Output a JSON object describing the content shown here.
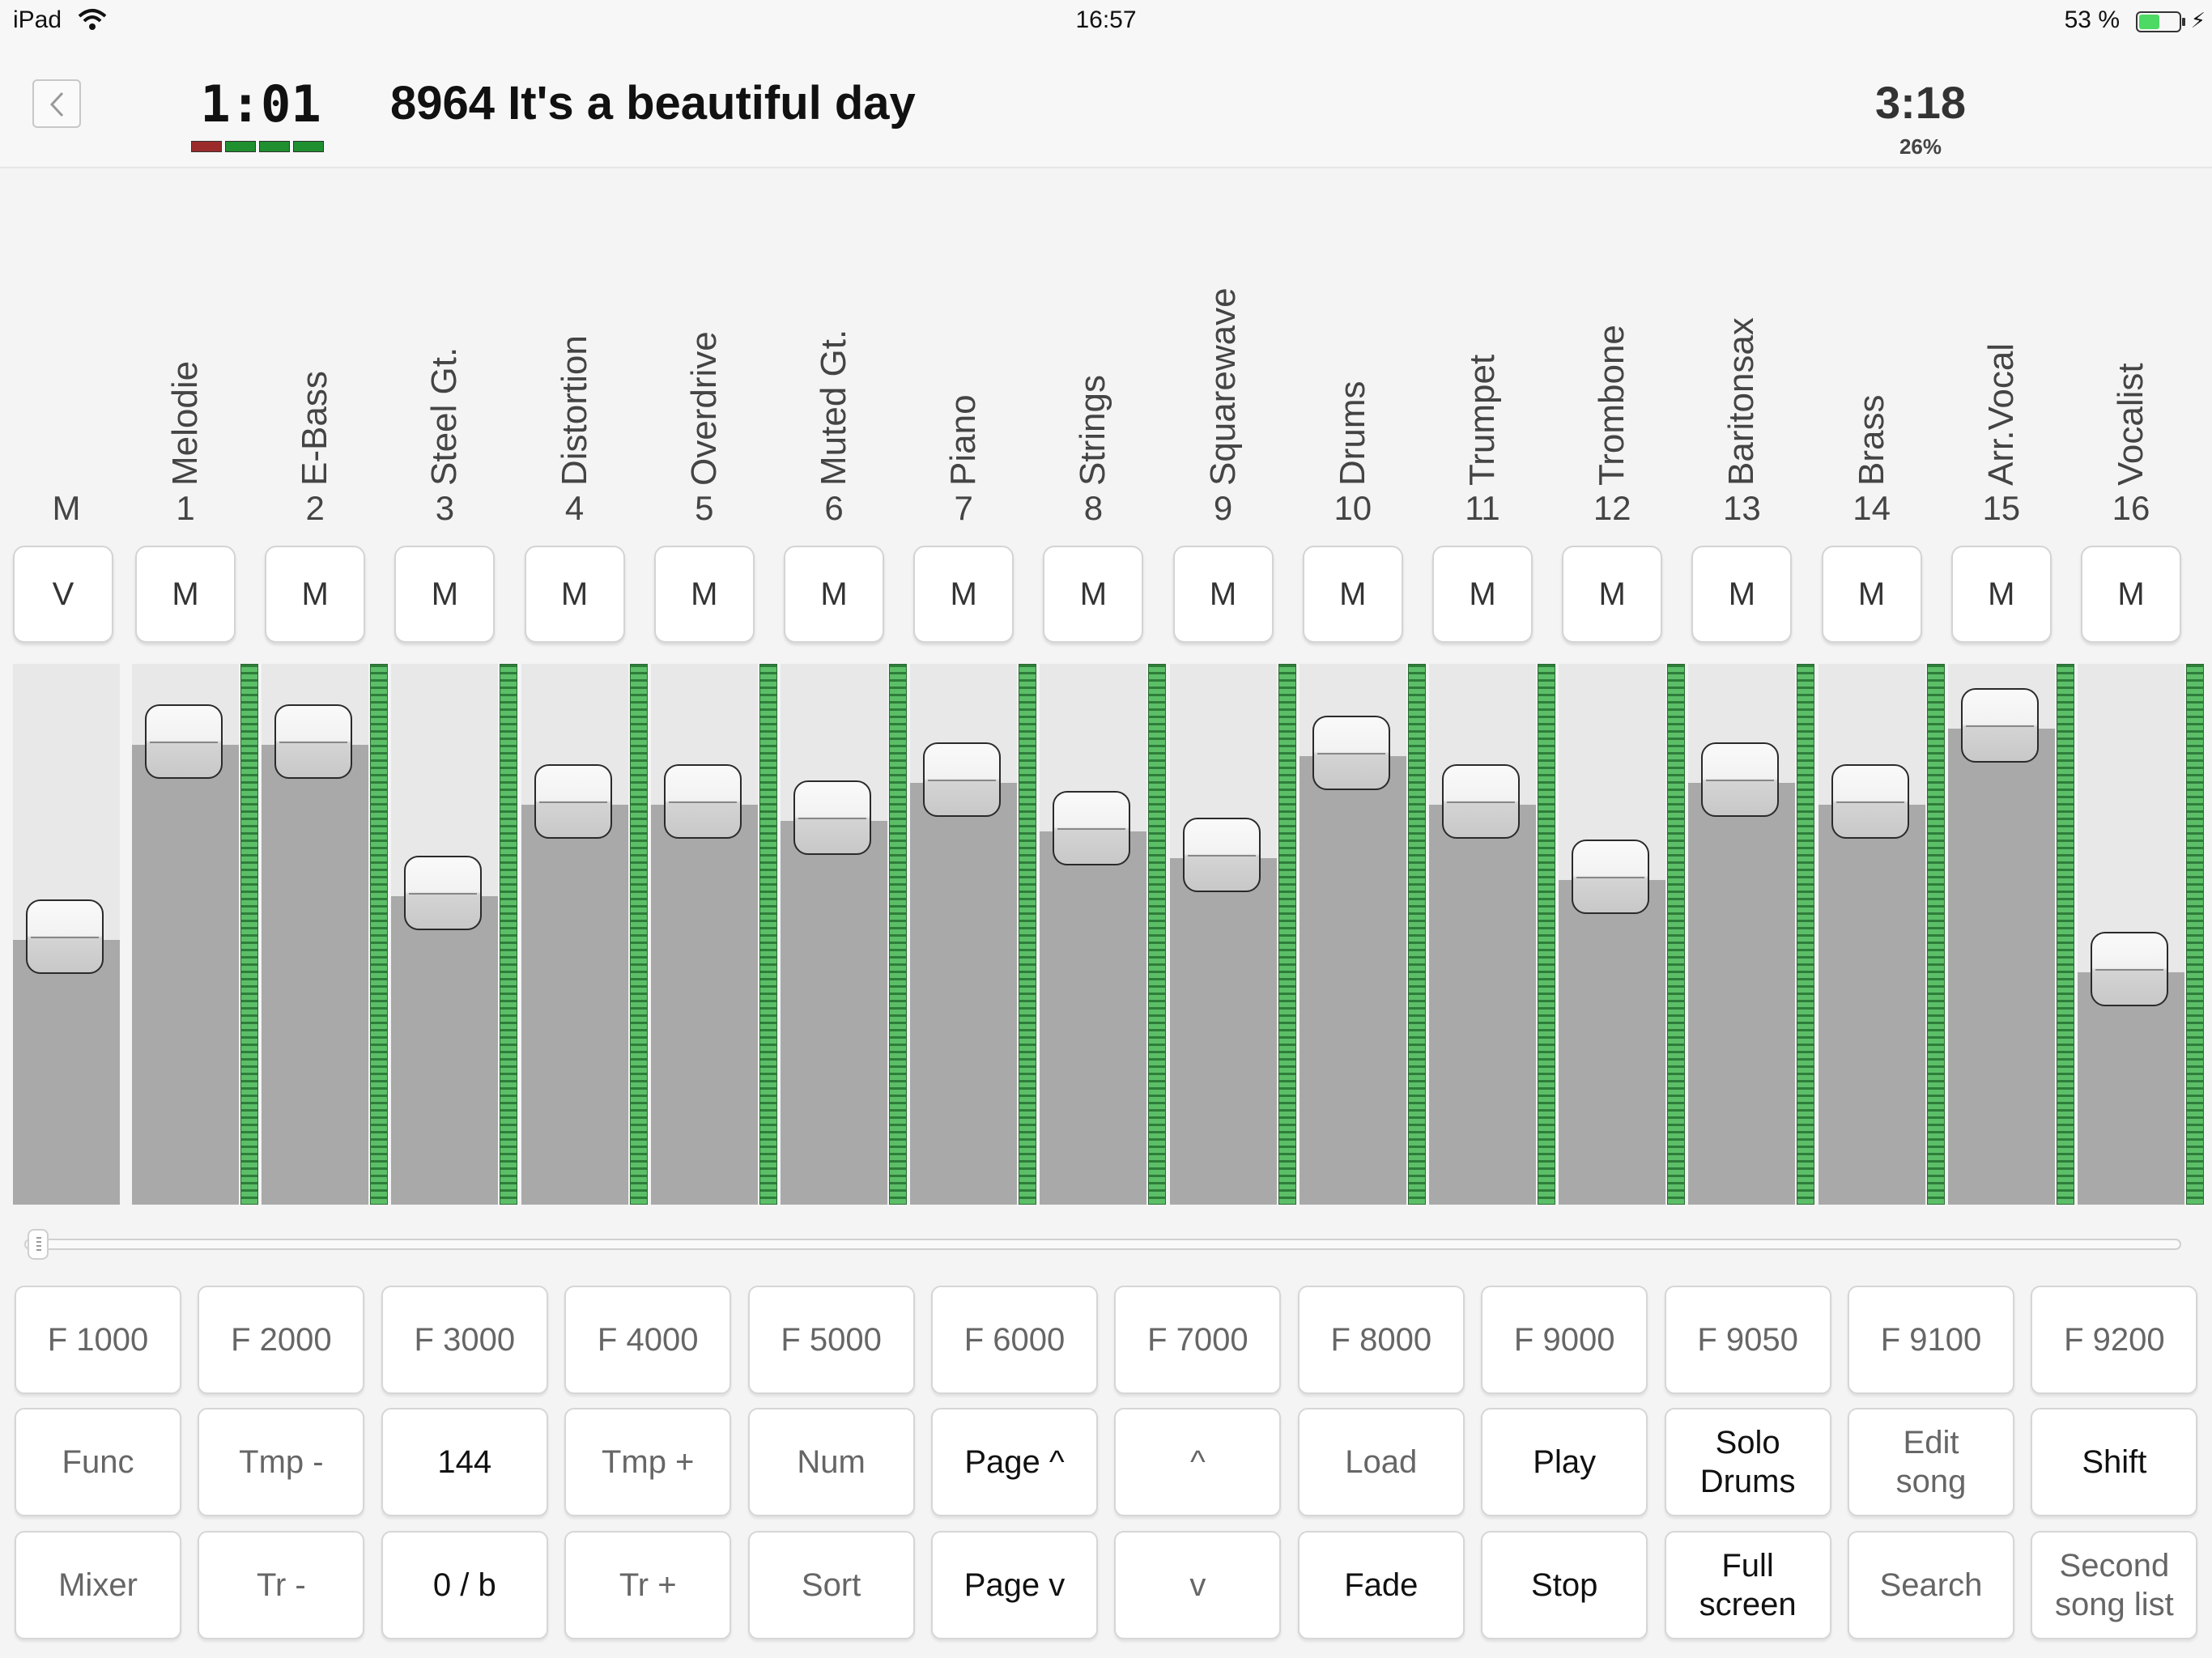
{
  "status_bar": {
    "device": "iPad",
    "time": "16:57",
    "battery": "53 %",
    "battery_level": 0.53
  },
  "header": {
    "back_icon": "chevron-left-icon",
    "position": "1:01",
    "beat_colors": [
      "#9b2b2b",
      "#1f8f2f",
      "#1f8f2f",
      "#1f8f2f"
    ],
    "song_title": "8964 It's a beautiful day",
    "duration": "3:18",
    "percent": "26%"
  },
  "mixer": {
    "master": {
      "label": "M",
      "button": "V",
      "level": 0.49
    },
    "channels": [
      {
        "num": "1",
        "name": "Melodie",
        "mute": "M",
        "level": 0.85
      },
      {
        "num": "2",
        "name": "E-Bass",
        "mute": "M",
        "level": 0.85
      },
      {
        "num": "3",
        "name": "Steel Gt.",
        "mute": "M",
        "level": 0.57
      },
      {
        "num": "4",
        "name": "Distortion",
        "mute": "M",
        "level": 0.74
      },
      {
        "num": "5",
        "name": "Overdrive",
        "mute": "M",
        "level": 0.74
      },
      {
        "num": "6",
        "name": "Muted Gt.",
        "mute": "M",
        "level": 0.71
      },
      {
        "num": "7",
        "name": "Piano",
        "mute": "M",
        "level": 0.78
      },
      {
        "num": "8",
        "name": "Strings",
        "mute": "M",
        "level": 0.69
      },
      {
        "num": "9",
        "name": "Squarewave",
        "mute": "M",
        "level": 0.64
      },
      {
        "num": "10",
        "name": "Drums",
        "mute": "M",
        "level": 0.83
      },
      {
        "num": "11",
        "name": "Trumpet",
        "mute": "M",
        "level": 0.74
      },
      {
        "num": "12",
        "name": "Trombone",
        "mute": "M",
        "level": 0.6
      },
      {
        "num": "13",
        "name": "Baritonsax",
        "mute": "M",
        "level": 0.78
      },
      {
        "num": "14",
        "name": "Brass",
        "mute": "M",
        "level": 0.74
      },
      {
        "num": "15",
        "name": "Arr.Vocal",
        "mute": "M",
        "level": 0.88
      },
      {
        "num": "16",
        "name": "Vocalist",
        "mute": "M",
        "level": 0.43
      }
    ],
    "colors": {
      "fill": "#a9a9a9",
      "meter": "#3cab4c"
    }
  },
  "keys": [
    [
      {
        "label": "F 1000",
        "style": "dim"
      },
      {
        "label": "F 2000",
        "style": "dim"
      },
      {
        "label": "F 3000",
        "style": "dim"
      },
      {
        "label": "F 4000",
        "style": "dim"
      },
      {
        "label": "F 5000",
        "style": "dim"
      },
      {
        "label": "F 6000",
        "style": "dim"
      },
      {
        "label": "F 7000",
        "style": "dim"
      },
      {
        "label": "F 8000",
        "style": "dim"
      },
      {
        "label": "F 9000",
        "style": "dim"
      },
      {
        "label": "F 9050",
        "style": "dim"
      },
      {
        "label": "F 9100",
        "style": "dim"
      },
      {
        "label": "F 9200",
        "style": "dim"
      }
    ],
    [
      {
        "label": "Func",
        "style": "dim"
      },
      {
        "label": "Tmp -",
        "style": "dim"
      },
      {
        "label": "144",
        "style": "dark"
      },
      {
        "label": "Tmp +",
        "style": "dim"
      },
      {
        "label": "Num",
        "style": "dim"
      },
      {
        "label": "Page ^",
        "style": "dark"
      },
      {
        "label": "^",
        "style": "dim"
      },
      {
        "label": "Load",
        "style": "dim"
      },
      {
        "label": "Play",
        "style": "dark"
      },
      {
        "label": "Solo\nDrums",
        "style": "dark"
      },
      {
        "label": "Edit\nsong",
        "style": "dim"
      },
      {
        "label": "Shift",
        "style": "dark"
      }
    ],
    [
      {
        "label": "Mixer",
        "style": "dim"
      },
      {
        "label": "Tr -",
        "style": "dim"
      },
      {
        "label": "0 / b",
        "style": "dark"
      },
      {
        "label": "Tr +",
        "style": "dim"
      },
      {
        "label": "Sort",
        "style": "dim"
      },
      {
        "label": "Page v",
        "style": "dark"
      },
      {
        "label": "v",
        "style": "dim"
      },
      {
        "label": "Fade",
        "style": "dark"
      },
      {
        "label": "Stop",
        "style": "dark"
      },
      {
        "label": "Full\nscreen",
        "style": "dark"
      },
      {
        "label": "Search",
        "style": "dim"
      },
      {
        "label": "Second\nsong list",
        "style": "dim"
      }
    ]
  ]
}
